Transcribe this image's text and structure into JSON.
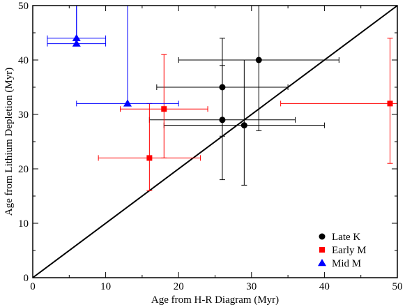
{
  "chart_data": {
    "type": "scatter",
    "xlabel": "Age from H-R Diagram (Myr)",
    "ylabel": "Age from Lithium Depletion (Myr)",
    "xlim": [
      0,
      50
    ],
    "ylim": [
      0,
      50
    ],
    "x_ticks": [
      0,
      10,
      20,
      30,
      40,
      50
    ],
    "y_ticks": [
      0,
      10,
      20,
      30,
      40,
      50
    ],
    "x_ticks_labels": [
      "0",
      "10",
      "20",
      "30",
      "40",
      "50"
    ],
    "y_ticks_labels": [
      "0",
      "10",
      "20",
      "30",
      "40",
      "50"
    ],
    "grid": false,
    "legend_position": "bottom-right",
    "reference_line": {
      "from": [
        0,
        0
      ],
      "to": [
        50,
        50
      ],
      "color": "#000000"
    },
    "series": [
      {
        "name": "Late K",
        "marker": "circle",
        "color": "#000000",
        "points": [
          {
            "x": 26,
            "y": 35,
            "xerr": [
              17,
              35
            ],
            "yerr": [
              26,
              44
            ]
          },
          {
            "x": 31,
            "y": 40,
            "xerr": [
              20,
              42
            ],
            "yerr": [
              27,
              50
            ]
          },
          {
            "x": 26,
            "y": 29,
            "xerr": [
              16,
              36
            ],
            "yerr": [
              18,
              39
            ]
          },
          {
            "x": 29,
            "y": 28,
            "xerr": [
              18,
              40
            ],
            "yerr": [
              17,
              40
            ]
          }
        ]
      },
      {
        "name": "Early M",
        "marker": "square",
        "color": "#ff0000",
        "points": [
          {
            "x": 18,
            "y": 31,
            "xerr": [
              12,
              24
            ],
            "yerr": [
              22,
              41
            ]
          },
          {
            "x": 16,
            "y": 22,
            "xerr": [
              9,
              23
            ],
            "yerr": [
              16,
              32
            ]
          },
          {
            "x": 49,
            "y": 32,
            "xerr": [
              34,
              50
            ],
            "yerr": [
              21,
              44
            ]
          }
        ]
      },
      {
        "name": "Mid M",
        "marker": "triangle",
        "color": "#0000ff",
        "points": [
          {
            "x": 6,
            "y": 44,
            "xerr": [
              2,
              10
            ],
            "yerr": [
              44,
              50
            ]
          },
          {
            "x": 6,
            "y": 43,
            "xerr": [
              2,
              10
            ],
            "yerr": [
              43,
              50
            ]
          },
          {
            "x": 13,
            "y": 32,
            "xerr": [
              6,
              20
            ],
            "yerr": [
              32,
              50
            ]
          }
        ]
      }
    ]
  }
}
